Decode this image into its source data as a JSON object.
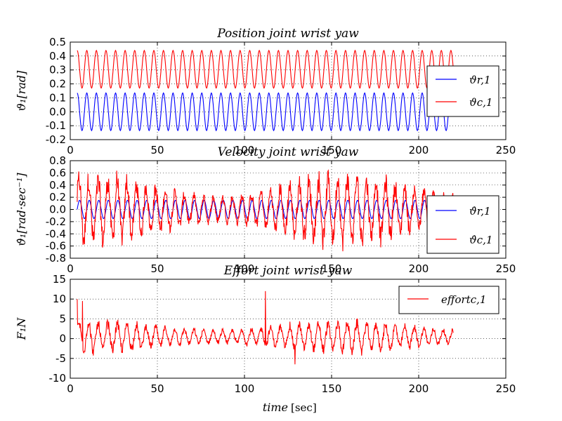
{
  "figure": {
    "xlabel_italic": "time",
    "xlabel_unit": "[sec]"
  },
  "chart_data": [
    {
      "type": "line",
      "title": "Position  joint wrist yaw",
      "ylabel": "ϑ₁[rad]",
      "xlim": [
        0,
        250
      ],
      "ylim": [
        -0.2,
        0.5
      ],
      "xticks": [
        0,
        50,
        100,
        150,
        200,
        250
      ],
      "yticks": [
        -0.2,
        -0.1,
        0.0,
        0.1,
        0.2,
        0.3,
        0.4,
        0.5
      ],
      "grid": true,
      "legend_position": "center-right",
      "x_range": [
        4,
        220
      ],
      "series": [
        {
          "name": "ϑr,1",
          "color": "#0000ff",
          "kind": "sine",
          "center": 0.0,
          "amplitude": 0.135,
          "period_sec": 5.5
        },
        {
          "name": "ϑc,1",
          "color": "#ff0000",
          "kind": "sine",
          "center": 0.305,
          "amplitude": 0.135,
          "period_sec": 5.5
        }
      ]
    },
    {
      "type": "line",
      "title": "Velocity  joint wrist yaw",
      "ylabel": "ϑ̇₁[rad·sec⁻¹]",
      "xlim": [
        0,
        250
      ],
      "ylim": [
        -0.8,
        0.8
      ],
      "xticks": [
        0,
        50,
        100,
        150,
        200,
        250
      ],
      "yticks": [
        -0.8,
        -0.6,
        -0.4,
        -0.2,
        0.0,
        0.2,
        0.4,
        0.6,
        0.8
      ],
      "grid": true,
      "legend_position": "center-right",
      "x_range": [
        4,
        220
      ],
      "series": [
        {
          "name": "ϑ̇r,1",
          "color": "#0000ff",
          "kind": "oscillation",
          "center": 0.0,
          "amplitude": 0.15
        },
        {
          "name": "ϑ̇c,1",
          "color": "#ff0000",
          "kind": "noisy-oscillation",
          "center": 0.0,
          "amplitude_range": [
            0.25,
            0.75
          ]
        }
      ]
    },
    {
      "type": "line",
      "title": "Effort  joint wrist yaw",
      "ylabel": "F₁N",
      "xlim": [
        0,
        250
      ],
      "ylim": [
        -10,
        15
      ],
      "xticks": [
        0,
        50,
        100,
        150,
        200,
        250
      ],
      "yticks": [
        -10,
        -5,
        0,
        5,
        10,
        15
      ],
      "grid": true,
      "legend_position": "top-right",
      "x_range": [
        4,
        220
      ],
      "series": [
        {
          "name": "effortc,1",
          "color": "#ff0000",
          "kind": "noisy-oscillation",
          "center": 0.5,
          "amplitude_range": [
            2,
            5
          ],
          "spikes": [
            [
              4,
              10
            ],
            [
              7,
              9.5
            ],
            [
              112,
              12
            ],
            [
              129,
              -6.5
            ]
          ]
        }
      ]
    }
  ]
}
